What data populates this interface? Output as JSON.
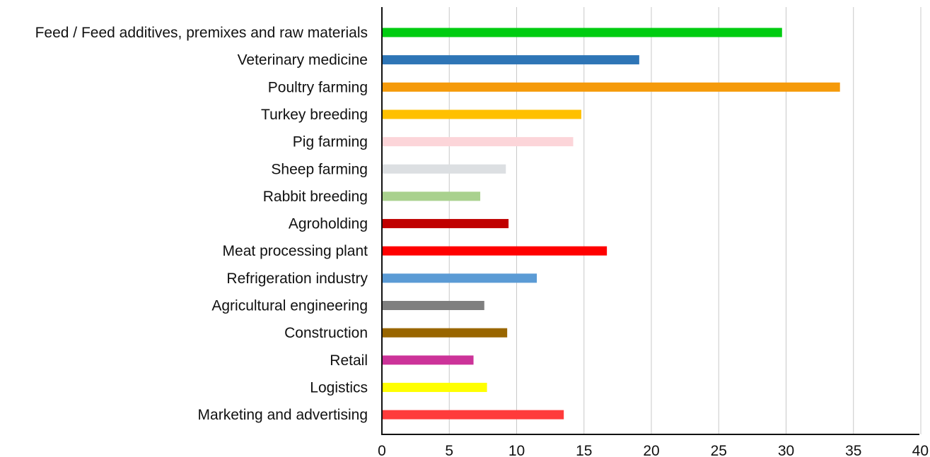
{
  "chart_data": {
    "type": "bar",
    "orientation": "horizontal",
    "categories": [
      "Feed / Feed additives, premixes and raw materials",
      "Veterinary medicine",
      "Poultry farming",
      "Turkey breeding",
      "Pig farming",
      "Sheep farming",
      "Rabbit breeding",
      "Agroholding",
      "Meat processing plant",
      "Refrigeration industry",
      "Agricultural engineering",
      "Construction",
      "Retail",
      "Logistics",
      "Marketing and advertising"
    ],
    "values": [
      29.7,
      19.1,
      34.0,
      14.8,
      14.2,
      9.2,
      7.3,
      9.4,
      16.7,
      11.5,
      7.6,
      9.3,
      6.8,
      7.8,
      13.5
    ],
    "colors": [
      "#00cc11",
      "#2e75b6",
      "#f59a0a",
      "#ffc000",
      "#fcd5d9",
      "#dcdfe2",
      "#a9d18e",
      "#c00000",
      "#ff0000",
      "#5b9bd5",
      "#7f7f7f",
      "#996600",
      "#cc3399",
      "#ffff00",
      "#ff3b3b"
    ],
    "xlim": [
      0,
      40
    ],
    "xticks": [
      0,
      5,
      10,
      15,
      20,
      25,
      30,
      35,
      40
    ],
    "grid": true,
    "legend": "none"
  }
}
